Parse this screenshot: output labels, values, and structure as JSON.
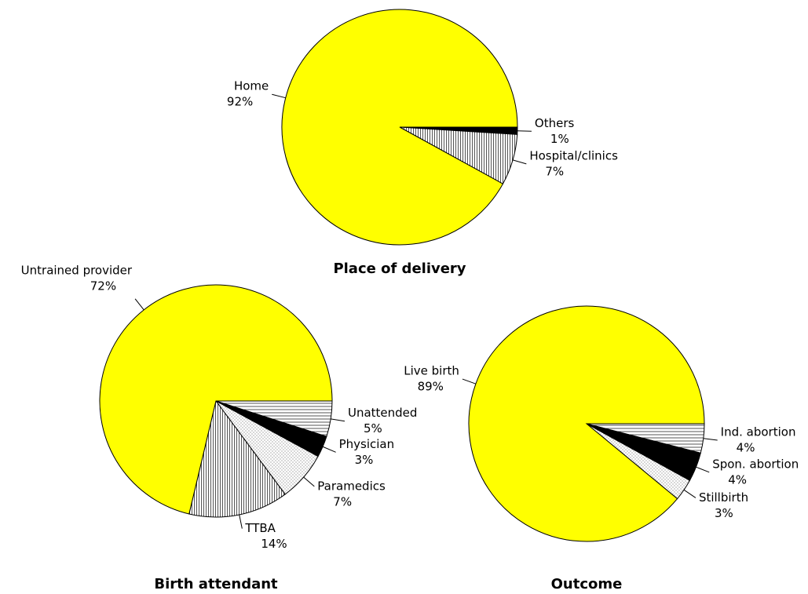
{
  "chart_data": [
    {
      "type": "pie",
      "title": "Place of delivery",
      "categories": [
        "Others",
        "Hospital/clinics",
        "Home"
      ],
      "values": [
        1,
        7,
        92
      ],
      "value_labels": [
        "1%",
        "7%",
        "92%"
      ],
      "colors": [
        "#000000",
        "#ffffff",
        "#ffff00"
      ],
      "hatch": [
        null,
        "vertical",
        null
      ]
    },
    {
      "type": "pie",
      "title": "Birth attendant",
      "categories": [
        "Unattended",
        "Physician",
        "Paramedics",
        "TTBA",
        "Untrained provider"
      ],
      "values": [
        5,
        3,
        7,
        14,
        72
      ],
      "value_labels": [
        "5%",
        "3%",
        "7%",
        "14%",
        "72%"
      ],
      "colors": [
        "#ffffff",
        "#000000",
        "#ffffff",
        "#ffffff",
        "#ffff00"
      ],
      "hatch": [
        "horizontal",
        null,
        "dotted",
        "vertical",
        null
      ]
    },
    {
      "type": "pie",
      "title": "Outcome",
      "categories": [
        "Ind. abortion",
        "Spon. abortion",
        "Stillbirth",
        "Live birth"
      ],
      "values": [
        4,
        4,
        3,
        89
      ],
      "value_labels": [
        "4%",
        "4%",
        "3%",
        "89%"
      ],
      "colors": [
        "#ffffff",
        "#000000",
        "#ffffff",
        "#ffff00"
      ],
      "hatch": [
        "horizontal",
        null,
        "dotted",
        null
      ]
    }
  ]
}
